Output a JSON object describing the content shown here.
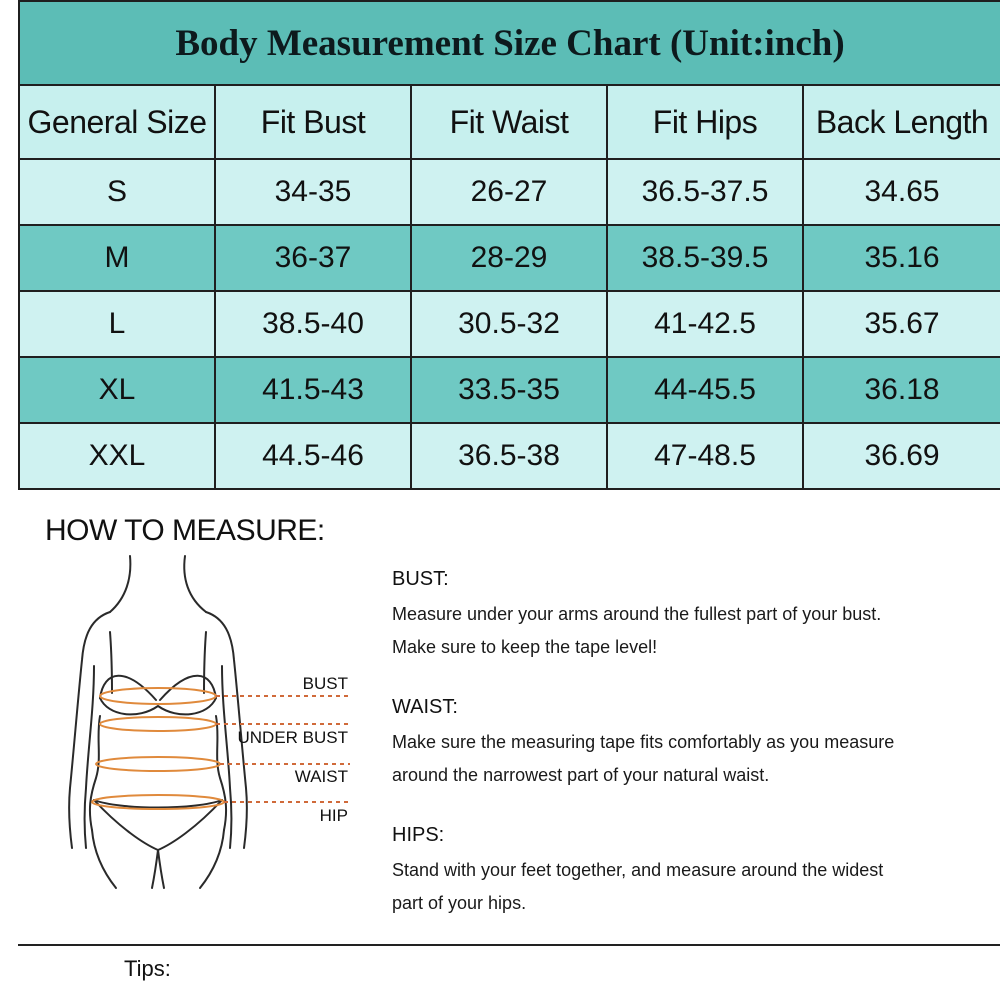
{
  "chart": {
    "title": "Body Measurement Size Chart (Unit:inch)",
    "headers": [
      "General Size",
      "Fit Bust",
      "Fit Waist",
      "Fit Hips",
      "Back Length"
    ],
    "rows": [
      [
        "S",
        "34-35",
        "26-27",
        "36.5-37.5",
        "34.65"
      ],
      [
        "M",
        "36-37",
        "28-29",
        "38.5-39.5",
        "35.16"
      ],
      [
        "L",
        "38.5-40",
        "30.5-32",
        "41-42.5",
        "35.67"
      ],
      [
        "XL",
        "41.5-43",
        "33.5-35",
        "44-45.5",
        "36.18"
      ],
      [
        "XXL",
        "44.5-46",
        "36.5-38",
        "47-48.5",
        "36.69"
      ]
    ],
    "colors": {
      "title_bg": "#5cbdb6",
      "header_bg": "#c7f0ee",
      "row_light": "#cff2f1",
      "row_dark": "#6fc9c3",
      "tape": "#e08a3c"
    }
  },
  "how_to_measure": {
    "title": "HOW TO MEASURE:",
    "markers": [
      "BUST",
      "UNDER BUST",
      "WAIST",
      "HIP"
    ],
    "sections": [
      {
        "heading": "BUST:",
        "lines": [
          "Measure under your arms around the fullest part of your bust.",
          "Make sure to keep the tape level!"
        ]
      },
      {
        "heading": "WAIST:",
        "lines": [
          "Make sure the measuring tape fits comfortably as you measure",
          "around the narrowest part of your natural waist."
        ]
      },
      {
        "heading": "HIPS:",
        "lines": [
          "Stand with your feet together, and measure around the widest",
          "part of your hips."
        ]
      }
    ]
  },
  "tips": {
    "label": "Tips:"
  }
}
